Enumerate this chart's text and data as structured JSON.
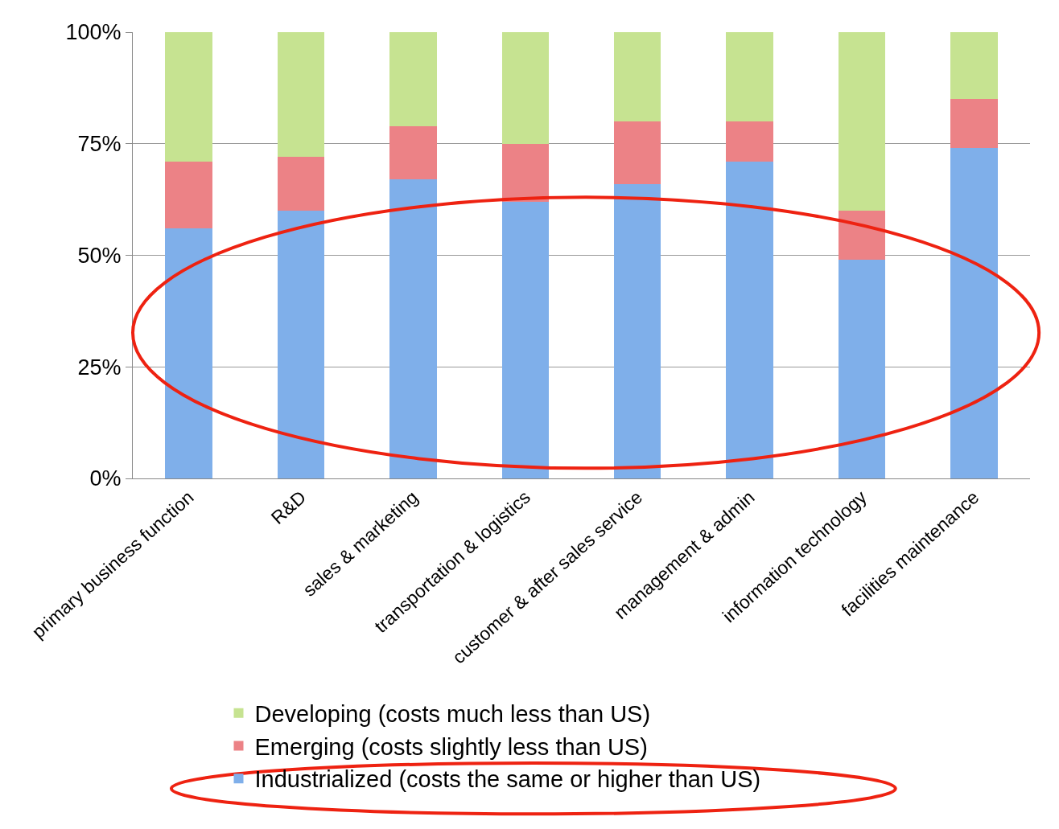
{
  "chart_data": {
    "type": "bar",
    "stacked": true,
    "categories": [
      "primary business function",
      "R&D",
      "sales & marketing",
      "transportation & logistics",
      "customer & after sales service",
      "management & admin",
      "information technology",
      "facilities maintenance"
    ],
    "series": [
      {
        "name": "Industrialized (costs the same or higher than US)",
        "color": "#7fafea",
        "values": [
          56,
          60,
          67,
          62,
          66,
          71,
          49,
          74
        ]
      },
      {
        "name": "Emerging (costs slightly less than US)",
        "color": "#ec8286",
        "values": [
          15,
          12,
          12,
          13,
          14,
          9,
          11,
          11
        ]
      },
      {
        "name": "Developing (costs much less than US)",
        "color": "#c6e391",
        "values": [
          29,
          28,
          21,
          25,
          20,
          20,
          40,
          15
        ]
      }
    ],
    "ylim": [
      0,
      100
    ],
    "yticks": [
      {
        "value": 0,
        "label": "0%"
      },
      {
        "value": 25,
        "label": "25%"
      },
      {
        "value": 50,
        "label": "50%"
      },
      {
        "value": 75,
        "label": "75%"
      },
      {
        "value": 100,
        "label": "100%"
      }
    ],
    "grid": "y",
    "legend": "bottom"
  }
}
